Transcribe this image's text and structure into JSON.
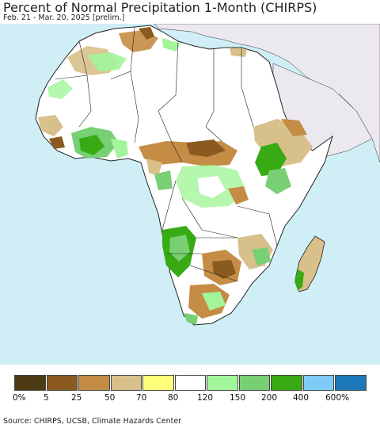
{
  "header": {
    "title": "Percent of Normal Precipitation 1-Month (CHIRPS)",
    "subtitle": "Feb. 21 - Mar. 20, 2025 [prelim.]"
  },
  "map": {
    "region": "Africa",
    "ocean_color": "#cfeef5",
    "outside_region_color": "#ece8ef"
  },
  "legend": {
    "bins": [
      {
        "color": "#4c3a12"
      },
      {
        "color": "#8a5a20"
      },
      {
        "color": "#c48c44"
      },
      {
        "color": "#d8c08a"
      },
      {
        "color": "#ffff7a"
      },
      {
        "color": "#ffffff"
      },
      {
        "color": "#a2f59a"
      },
      {
        "color": "#78cf74"
      },
      {
        "color": "#38aa14"
      },
      {
        "color": "#7ecbf5"
      },
      {
        "color": "#1c78b8"
      }
    ],
    "labels": [
      "0%",
      "5",
      "25",
      "50",
      "70",
      "80",
      "120",
      "150",
      "200",
      "400",
      "600%"
    ]
  },
  "footer": {
    "source": "Source: CHIRPS, UCSB, Climate Hazards Center"
  }
}
